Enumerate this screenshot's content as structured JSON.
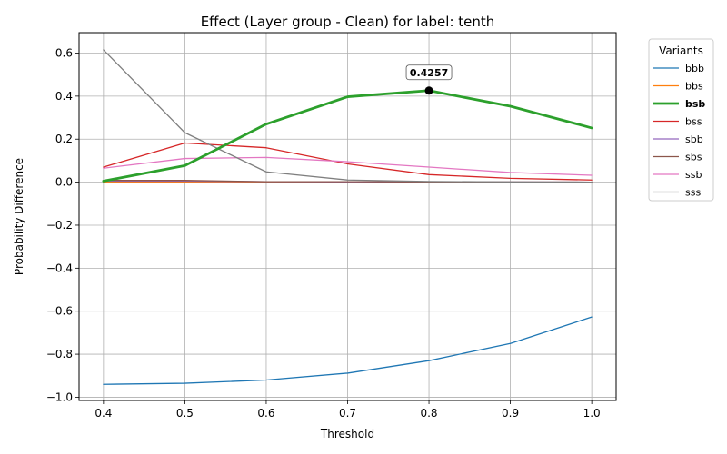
{
  "chart_data": {
    "type": "line",
    "title": "Effect (Layer group - Clean) for label: tenth",
    "xlabel": "Threshold",
    "ylabel": "Probability Difference",
    "x": [
      0.4,
      0.5,
      0.6,
      0.7,
      0.8,
      0.9,
      1.0
    ],
    "xlim": [
      0.37,
      1.03
    ],
    "ylim": [
      -1.015,
      0.695
    ],
    "xticks": [
      0.4,
      0.5,
      0.6,
      0.7,
      0.8,
      0.9,
      1.0
    ],
    "xtick_labels": [
      "0.4",
      "0.5",
      "0.6",
      "0.7",
      "0.8",
      "0.9",
      "1.0"
    ],
    "yticks": [
      -1.0,
      -0.8,
      -0.6,
      -0.4,
      -0.2,
      0.0,
      0.2,
      0.4,
      0.6
    ],
    "ytick_labels": [
      "−1.0",
      "−0.8",
      "−0.6",
      "−0.4",
      "−0.2",
      "0.0",
      "0.2",
      "0.4",
      "0.6"
    ],
    "grid": true,
    "legend": {
      "title": "Variants",
      "placement": "outside-right-top"
    },
    "series": [
      {
        "name": "bbb",
        "color": "#1f77b4",
        "highlight": false,
        "values": [
          -0.94,
          -0.935,
          -0.92,
          -0.888,
          -0.83,
          -0.75,
          -0.627
        ]
      },
      {
        "name": "bbs",
        "color": "#ff7f0e",
        "highlight": false,
        "values": [
          0.0,
          0.0,
          0.0,
          0.0,
          0.0,
          0.0,
          0.0
        ]
      },
      {
        "name": "bsb",
        "color": "#2ca02c",
        "highlight": true,
        "values": [
          0.005,
          0.077,
          0.27,
          0.397,
          0.4257,
          0.353,
          0.252
        ]
      },
      {
        "name": "bss",
        "color": "#d62728",
        "highlight": false,
        "values": [
          0.07,
          0.182,
          0.16,
          0.085,
          0.035,
          0.018,
          0.01
        ]
      },
      {
        "name": "sbb",
        "color": "#9467bd",
        "highlight": false,
        "values": [
          0.005,
          0.005,
          0.002,
          0.001,
          0.001,
          0.001,
          0.0
        ]
      },
      {
        "name": "sbs",
        "color": "#8c564b",
        "highlight": false,
        "values": [
          0.008,
          0.008,
          0.002,
          0.002,
          0.001,
          0.001,
          0.0
        ]
      },
      {
        "name": "ssb",
        "color": "#e377c2",
        "highlight": false,
        "values": [
          0.065,
          0.11,
          0.115,
          0.095,
          0.07,
          0.045,
          0.032
        ]
      },
      {
        "name": "sss",
        "color": "#7f7f7f",
        "highlight": false,
        "values": [
          0.615,
          0.23,
          0.048,
          0.01,
          0.003,
          0.001,
          0.0
        ]
      }
    ],
    "annotation": {
      "text": "0.4257",
      "x": 0.8,
      "y": 0.4257,
      "series": "bsb"
    }
  }
}
